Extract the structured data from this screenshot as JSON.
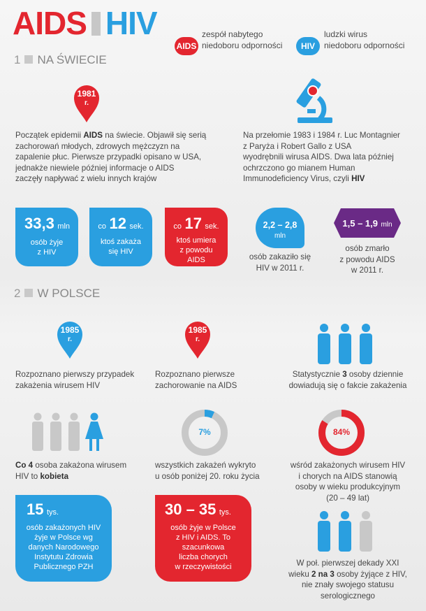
{
  "title": {
    "aids": "AIDS",
    "hiv": "HIV"
  },
  "legend": [
    {
      "badge": "AIDS",
      "line1": "zespół nabytego",
      "line2": "niedoboru odporności",
      "color": "#e3262f"
    },
    {
      "badge": "HIV",
      "line1": "ludzki wirus",
      "line2": "niedoboru odporności",
      "color": "#2a9fe0"
    }
  ],
  "section1": {
    "num": "1",
    "label": "NA ŚWIECIE"
  },
  "section2": {
    "num": "2",
    "label": "W POLSCE"
  },
  "world": {
    "pin_year": "1981",
    "pin_suffix": "r.",
    "icon": "microscope-icon",
    "left_text": {
      "l1a": "Początek epidemii ",
      "l1b": "AIDS",
      "l1c": " na świecie. Objawił się serią",
      "l2": "zachorowań młodych, zdrowych mężczyzn na",
      "l3": "zapalenie płuc. Pierwsze przypadki opisano w USA,",
      "l4": "jednakże niewiele później informacje o AIDS",
      "l5": "zaczęły napływać z wielu innych krajów"
    },
    "right_text": {
      "l1": "Na przełomie 1983 i 1984 r. Luc Montagnier",
      "l2": "z Paryża i Robert Gallo z USA",
      "l3": "wyodrębnili wirusa AIDS. Dwa lata później",
      "l4": "ochrzczono go mianem Human",
      "l5a": "Immunodeficiency Virus, czyli ",
      "l5b": "HIV"
    },
    "stats": [
      {
        "value": "33,3",
        "unit": "mln",
        "line1": "osób żyje",
        "line2": "z HIV"
      },
      {
        "prefix": "co",
        "value": "12",
        "unit": "sek.",
        "line1": "ktoś zakaża",
        "line2": "się HIV"
      },
      {
        "prefix": "co",
        "value": "17",
        "unit": "sek.",
        "line1": "ktoś umiera",
        "line2": "z powodu",
        "line3": "AIDS"
      },
      {
        "value": "2,2 – 2,8",
        "unit": "mln",
        "line1": "osób zakaziło się",
        "line2": "HIV w 2011 r."
      },
      {
        "value": "1,5 – 1,9",
        "unit": "mln",
        "line1": "osób zmarło",
        "line2": "z powodu AIDS",
        "line3": "w 2011 r."
      }
    ]
  },
  "poland": {
    "pin1": {
      "year": "1985",
      "suffix": "r.",
      "line1": "Rozpoznano pierwszy przypadek",
      "line2": "zakażenia wirusem HIV"
    },
    "pin2": {
      "year": "1985",
      "suffix": "r.",
      "line1": "Rozpoznano pierwsze",
      "line2": "zachorowanie na AIDS"
    },
    "daily": {
      "l1a": "Statystycznie ",
      "l1b": "3",
      "l1c": " osoby dziennie",
      "l2": "dowiadują się o fakcie zakażenia"
    },
    "women": {
      "l1a": "Co 4",
      "l1b": " osoba zakażona wirusem",
      "l2a": "HIV to ",
      "l2b": "kobieta"
    },
    "donut1": {
      "value": 7,
      "label": "7%",
      "line1": "wszystkich zakażeń wykryto",
      "line2": "u osób poniżej 20. roku życia"
    },
    "donut2": {
      "value": 84,
      "label": "84%",
      "line1": "wśród zakażonych wirusem HIV",
      "line2": "i chorych na AIDS stanowią",
      "line3": "osoby w wieku produkcyjnym",
      "line4": "(20 – 49 lat)"
    },
    "box1": {
      "value": "15",
      "unit": "tys.",
      "line1": "osób zakażonych HIV",
      "line2": "żyje w Polsce wg",
      "line3": "danych Narodowego",
      "line4": "Instytutu Zdrowia",
      "line5": "Publicznego PZH"
    },
    "box2": {
      "value": "30 – 35",
      "unit": "tys.",
      "line1": "osób żyje w Polsce",
      "line2": "z HIV i AIDS. To",
      "line3": "szacunkowa",
      "line4": "liczba chorych",
      "line5": "w rzeczywistości"
    },
    "unaware": {
      "l1": "W poł. pierwszej dekady XXI",
      "l2a": "wieku ",
      "l2b": "2 na 3",
      "l2c": " osoby żyjące z HIV,",
      "l3": "nie znały swojego statusu",
      "l4": "serologicznego"
    }
  },
  "colors": {
    "red": "#e3262f",
    "blue": "#2a9fe0",
    "purple": "#6a2a86",
    "grey": "#c8c8c8"
  }
}
